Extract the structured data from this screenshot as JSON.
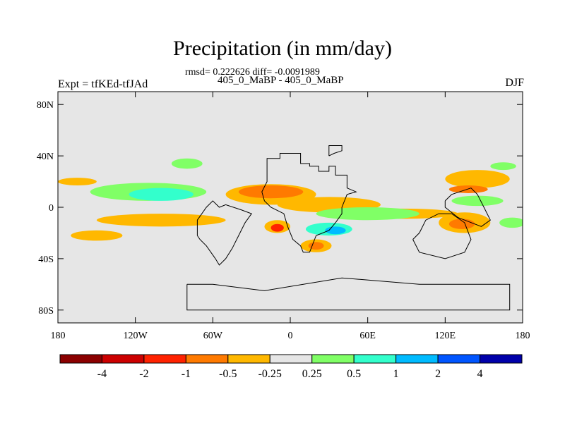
{
  "title": "Precipitation (in mm/day)",
  "stats_text": "rmsd= 0.222626 diff= -0.0091989",
  "subtitle": "405_0_MaBP - 405_0_MaBP",
  "left_label": "Expt = tfKEd-tfJAd",
  "right_label": "DJF",
  "colors": {
    "background_field": "#e6e6e6",
    "coastline": "#000000"
  },
  "chart_data": {
    "type": "heatmap",
    "projection": "cylindrical-equidistant",
    "xlim": [
      -180,
      180
    ],
    "ylim": [
      -90,
      90
    ],
    "x_ticks": [
      {
        "value": -180,
        "label": "180"
      },
      {
        "value": -120,
        "label": "120W"
      },
      {
        "value": -60,
        "label": "60W"
      },
      {
        "value": 0,
        "label": "0"
      },
      {
        "value": 60,
        "label": "60E"
      },
      {
        "value": 120,
        "label": "120E"
      },
      {
        "value": 180,
        "label": "180"
      }
    ],
    "y_ticks": [
      {
        "value": 80,
        "label": "80N"
      },
      {
        "value": 40,
        "label": "40N"
      },
      {
        "value": 0,
        "label": "0"
      },
      {
        "value": -40,
        "label": "40S"
      },
      {
        "value": -80,
        "label": "80S"
      }
    ],
    "colorbar": {
      "colors": [
        "#8b0000",
        "#cc0000",
        "#ff2200",
        "#ff7a00",
        "#ffb800",
        "#e6e6e6",
        "#80ff66",
        "#33ffcc",
        "#00bbff",
        "#0055ff",
        "#0000aa"
      ],
      "labels": [
        "-4",
        "-2",
        "-1",
        "-0.5",
        "-0.25",
        "0.25",
        "0.5",
        "1",
        "2",
        "4"
      ]
    },
    "anomaly_regions": [
      {
        "cls": "orange",
        "color": "#ffb800",
        "lon": -15,
        "lat": 10,
        "rx": 35,
        "ry": 8
      },
      {
        "cls": "red",
        "color": "#ff7a00",
        "lon": -15,
        "lat": 12,
        "rx": 25,
        "ry": 5
      },
      {
        "cls": "orange",
        "color": "#ffb800",
        "lon": 30,
        "lat": 2,
        "rx": 40,
        "ry": 6
      },
      {
        "cls": "orange",
        "color": "#ffb800",
        "lon": 85,
        "lat": -5,
        "rx": 45,
        "ry": 4
      },
      {
        "cls": "orange",
        "color": "#ffb800",
        "lon": -100,
        "lat": -10,
        "rx": 50,
        "ry": 5
      },
      {
        "cls": "green",
        "color": "#80ff66",
        "lon": -110,
        "lat": 12,
        "rx": 45,
        "ry": 7
      },
      {
        "cls": "cyan",
        "color": "#33ffcc",
        "lon": -100,
        "lat": 10,
        "rx": 25,
        "ry": 5
      },
      {
        "cls": "green",
        "color": "#80ff66",
        "lon": 60,
        "lat": -5,
        "rx": 40,
        "ry": 5
      },
      {
        "cls": "orange",
        "color": "#ffb800",
        "lon": 145,
        "lat": 22,
        "rx": 25,
        "ry": 7
      },
      {
        "cls": "red",
        "color": "#ff7a00",
        "lon": 138,
        "lat": 14,
        "rx": 15,
        "ry": 3
      },
      {
        "cls": "green",
        "color": "#80ff66",
        "lon": 145,
        "lat": 5,
        "rx": 20,
        "ry": 4
      },
      {
        "cls": "orange",
        "color": "#ffb800",
        "lon": 135,
        "lat": -12,
        "rx": 20,
        "ry": 8
      },
      {
        "cls": "red",
        "color": "#ff7a00",
        "lon": 133,
        "lat": -13,
        "rx": 10,
        "ry": 4
      },
      {
        "cls": "orange",
        "color": "#ffb800",
        "lon": -10,
        "lat": -15,
        "rx": 10,
        "ry": 5
      },
      {
        "cls": "red",
        "color": "#ff2200",
        "lon": -10,
        "lat": -16,
        "rx": 5,
        "ry": 3
      },
      {
        "cls": "orange",
        "color": "#ffb800",
        "lon": 20,
        "lat": -30,
        "rx": 12,
        "ry": 5
      },
      {
        "cls": "red",
        "color": "#ff7a00",
        "lon": 20,
        "lat": -30,
        "rx": 6,
        "ry": 3
      },
      {
        "cls": "cyan",
        "color": "#33ffcc",
        "lon": 30,
        "lat": -17,
        "rx": 18,
        "ry": 5
      },
      {
        "cls": "blue",
        "color": "#00bbff",
        "lon": 35,
        "lat": -18,
        "rx": 8,
        "ry": 3
      },
      {
        "cls": "orange",
        "color": "#ffb800",
        "lon": -150,
        "lat": -22,
        "rx": 20,
        "ry": 4
      },
      {
        "cls": "green",
        "color": "#80ff66",
        "lon": -80,
        "lat": 34,
        "rx": 12,
        "ry": 4
      },
      {
        "cls": "green",
        "color": "#80ff66",
        "lon": 165,
        "lat": 32,
        "rx": 10,
        "ry": 3
      },
      {
        "cls": "orange",
        "color": "#ffb800",
        "lon": -165,
        "lat": 20,
        "rx": 15,
        "ry": 3
      },
      {
        "cls": "green",
        "color": "#80ff66",
        "lon": 172,
        "lat": -12,
        "rx": 10,
        "ry": 4
      }
    ],
    "coastlines": [
      [
        [
          -18,
          33
        ],
        [
          -18,
          38
        ],
        [
          -8,
          38
        ],
        [
          -8,
          42
        ],
        [
          8,
          42
        ],
        [
          8,
          34
        ],
        [
          15,
          34
        ],
        [
          15,
          32
        ],
        [
          22,
          32
        ],
        [
          22,
          28
        ],
        [
          30,
          28
        ],
        [
          30,
          32
        ],
        [
          35,
          32
        ],
        [
          35,
          25
        ],
        [
          44,
          25
        ],
        [
          44,
          15
        ],
        [
          51,
          12
        ],
        [
          44,
          10
        ],
        [
          40,
          0
        ],
        [
          40,
          -5
        ],
        [
          35,
          -12
        ],
        [
          30,
          -18
        ],
        [
          20,
          -22
        ],
        [
          15,
          -35
        ],
        [
          10,
          -35
        ],
        [
          8,
          -30
        ],
        [
          2,
          -25
        ],
        [
          -2,
          -15
        ],
        [
          -5,
          -5
        ],
        [
          -15,
          0
        ],
        [
          -20,
          5
        ],
        [
          -22,
          12
        ],
        [
          -18,
          20
        ],
        [
          -18,
          33
        ]
      ],
      [
        [
          -72,
          -22
        ],
        [
          -70,
          -25
        ],
        [
          -65,
          -30
        ],
        [
          -58,
          -40
        ],
        [
          -55,
          -45
        ],
        [
          -50,
          -40
        ],
        [
          -45,
          -32
        ],
        [
          -40,
          -22
        ],
        [
          -35,
          -12
        ],
        [
          -30,
          -5
        ],
        [
          -38,
          -2
        ],
        [
          -50,
          2
        ],
        [
          -55,
          0
        ],
        [
          -60,
          5
        ],
        [
          -65,
          0
        ],
        [
          -72,
          -10
        ],
        [
          -72,
          -22
        ]
      ],
      [
        [
          -80,
          -60
        ],
        [
          -80,
          -80
        ],
        [
          40,
          -80
        ],
        [
          100,
          -80
        ],
        [
          170,
          -80
        ],
        [
          170,
          -60
        ],
        [
          100,
          -60
        ],
        [
          40,
          -55
        ],
        [
          -20,
          -65
        ],
        [
          -60,
          -60
        ],
        [
          -80,
          -60
        ]
      ],
      [
        [
          95,
          -25
        ],
        [
          100,
          -20
        ],
        [
          105,
          -10
        ],
        [
          115,
          -5
        ],
        [
          125,
          -5
        ],
        [
          135,
          -12
        ],
        [
          140,
          -25
        ],
        [
          135,
          -35
        ],
        [
          120,
          -40
        ],
        [
          100,
          -35
        ],
        [
          95,
          -25
        ]
      ],
      [
        [
          120,
          5
        ],
        [
          125,
          10
        ],
        [
          140,
          15
        ],
        [
          145,
          10
        ],
        [
          150,
          0
        ],
        [
          155,
          -10
        ],
        [
          148,
          -15
        ],
        [
          130,
          -8
        ],
        [
          120,
          0
        ],
        [
          120,
          5
        ]
      ],
      [
        [
          30,
          40
        ],
        [
          30,
          48
        ],
        [
          40,
          48
        ],
        [
          40,
          44
        ],
        [
          34,
          42
        ],
        [
          30,
          40
        ]
      ]
    ]
  }
}
